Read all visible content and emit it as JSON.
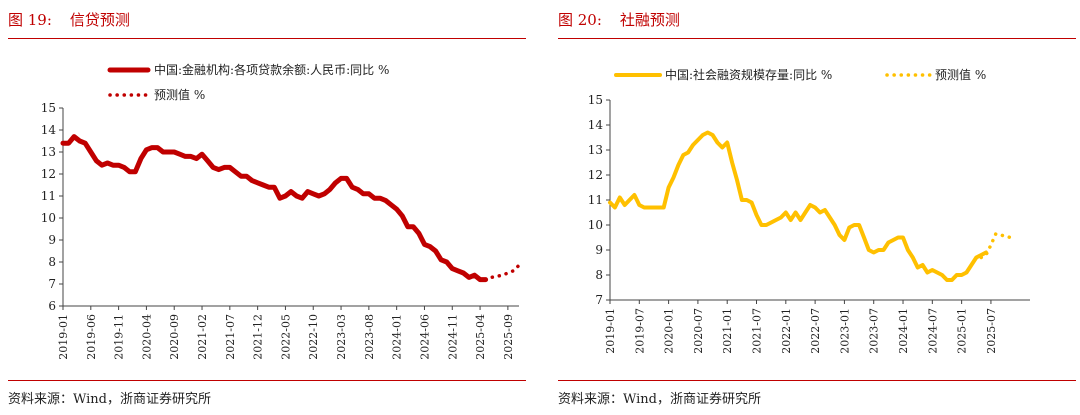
{
  "charts": [
    {
      "figure_number": "图 19:",
      "figure_title": "信贷预测",
      "source": "资料来源：Wind，浙商证券研究所"
    },
    {
      "figure_number": "图 20:",
      "figure_title": "社融预测",
      "source": "资料来源：Wind，浙商证券研究所"
    }
  ],
  "chart_data": [
    {
      "type": "line",
      "title": "图 19:  信贷预测",
      "colors": {
        "actual": "#c00000",
        "forecast": "#c00000"
      },
      "legend_position": "top-right",
      "grid": false,
      "ylim": [
        6,
        15
      ],
      "yticks": [
        6,
        7,
        8,
        9,
        10,
        11,
        12,
        13,
        14,
        15
      ],
      "xticks": [
        "2019-01",
        "2019-06",
        "2019-11",
        "2020-04",
        "2020-09",
        "2021-02",
        "2021-07",
        "2021-12",
        "2022-05",
        "2022-10",
        "2023-03",
        "2023-08",
        "2024-01",
        "2024-06",
        "2024-11",
        "2025-04",
        "2025-09"
      ],
      "series": [
        {
          "name": "中国:金融机构:各项贷款余额:人民币:同比 %",
          "style": "solid",
          "x": [
            "2019-01",
            "2019-02",
            "2019-03",
            "2019-04",
            "2019-05",
            "2019-06",
            "2019-07",
            "2019-08",
            "2019-09",
            "2019-10",
            "2019-11",
            "2019-12",
            "2020-01",
            "2020-02",
            "2020-03",
            "2020-04",
            "2020-05",
            "2020-06",
            "2020-07",
            "2020-08",
            "2020-09",
            "2020-10",
            "2020-11",
            "2020-12",
            "2021-01",
            "2021-02",
            "2021-03",
            "2021-04",
            "2021-05",
            "2021-06",
            "2021-07",
            "2021-08",
            "2021-09",
            "2021-10",
            "2021-11",
            "2021-12",
            "2022-01",
            "2022-02",
            "2022-03",
            "2022-04",
            "2022-05",
            "2022-06",
            "2022-07",
            "2022-08",
            "2022-09",
            "2022-10",
            "2022-11",
            "2022-12",
            "2023-01",
            "2023-02",
            "2023-03",
            "2023-04",
            "2023-05",
            "2023-06",
            "2023-07",
            "2023-08",
            "2023-09",
            "2023-10",
            "2023-11",
            "2023-12",
            "2024-01",
            "2024-02",
            "2024-03",
            "2024-04",
            "2024-05",
            "2024-06",
            "2024-07",
            "2024-08",
            "2024-09",
            "2024-10",
            "2024-11",
            "2024-12",
            "2025-01",
            "2025-02",
            "2025-03",
            "2025-04",
            "2025-05"
          ],
          "values": [
            13.4,
            13.4,
            13.7,
            13.5,
            13.4,
            13.0,
            12.6,
            12.4,
            12.5,
            12.4,
            12.4,
            12.3,
            12.1,
            12.1,
            12.7,
            13.1,
            13.2,
            13.2,
            13.0,
            13.0,
            13.0,
            12.9,
            12.8,
            12.8,
            12.7,
            12.9,
            12.6,
            12.3,
            12.2,
            12.3,
            12.3,
            12.1,
            11.9,
            11.9,
            11.7,
            11.6,
            11.5,
            11.4,
            11.4,
            10.9,
            11.0,
            11.2,
            11.0,
            10.9,
            11.2,
            11.1,
            11.0,
            11.1,
            11.3,
            11.6,
            11.8,
            11.8,
            11.4,
            11.3,
            11.1,
            11.1,
            10.9,
            10.9,
            10.8,
            10.6,
            10.4,
            10.1,
            9.6,
            9.6,
            9.3,
            8.8,
            8.7,
            8.5,
            8.1,
            8.0,
            7.7,
            7.6,
            7.5,
            7.3,
            7.4,
            7.2,
            7.2
          ]
        },
        {
          "name": "预测值 %",
          "style": "dotted",
          "x": [
            "2025-05",
            "2025-06",
            "2025-07",
            "2025-08",
            "2025-09",
            "2025-10",
            "2025-11"
          ],
          "values": [
            7.2,
            7.3,
            7.35,
            7.4,
            7.5,
            7.6,
            7.85
          ]
        }
      ]
    },
    {
      "type": "line",
      "title": "图 20:  社融预测",
      "colors": {
        "actual": "#ffc000",
        "forecast": "#ffc000"
      },
      "legend_position": "top",
      "grid": false,
      "ylim": [
        7,
        15
      ],
      "yticks": [
        7,
        8,
        9,
        10,
        11,
        12,
        13,
        14,
        15
      ],
      "xticks": [
        "2019-01",
        "2019-07",
        "2020-01",
        "2020-07",
        "2021-01",
        "2021-07",
        "2022-01",
        "2022-07",
        "2023-01",
        "2023-07",
        "2024-01",
        "2024-07",
        "2025-01",
        "2025-07"
      ],
      "series": [
        {
          "name": "中国:社会融资规模存量:同比 %",
          "style": "solid",
          "x": [
            "2019-01",
            "2019-02",
            "2019-03",
            "2019-04",
            "2019-05",
            "2019-06",
            "2019-07",
            "2019-08",
            "2019-09",
            "2019-10",
            "2019-11",
            "2019-12",
            "2020-01",
            "2020-02",
            "2020-03",
            "2020-04",
            "2020-05",
            "2020-06",
            "2020-07",
            "2020-08",
            "2020-09",
            "2020-10",
            "2020-11",
            "2020-12",
            "2021-01",
            "2021-02",
            "2021-03",
            "2021-04",
            "2021-05",
            "2021-06",
            "2021-07",
            "2021-08",
            "2021-09",
            "2021-10",
            "2021-11",
            "2021-12",
            "2022-01",
            "2022-02",
            "2022-03",
            "2022-04",
            "2022-05",
            "2022-06",
            "2022-07",
            "2022-08",
            "2022-09",
            "2022-10",
            "2022-11",
            "2022-12",
            "2023-01",
            "2023-02",
            "2023-03",
            "2023-04",
            "2023-05",
            "2023-06",
            "2023-07",
            "2023-08",
            "2023-09",
            "2023-10",
            "2023-11",
            "2023-12",
            "2024-01",
            "2024-02",
            "2024-03",
            "2024-04",
            "2024-05",
            "2024-06",
            "2024-07",
            "2024-08",
            "2024-09",
            "2024-10",
            "2024-11",
            "2024-12",
            "2025-01",
            "2025-02",
            "2025-03",
            "2025-04",
            "2025-05",
            "2025-06"
          ],
          "values": [
            10.9,
            10.7,
            11.1,
            10.8,
            11.0,
            11.2,
            10.8,
            10.7,
            10.7,
            10.7,
            10.7,
            10.7,
            11.5,
            11.9,
            12.4,
            12.8,
            12.9,
            13.2,
            13.4,
            13.6,
            13.7,
            13.6,
            13.3,
            13.1,
            13.3,
            12.5,
            11.8,
            11.0,
            11.0,
            10.9,
            10.4,
            10.0,
            10.0,
            10.1,
            10.2,
            10.3,
            10.5,
            10.2,
            10.5,
            10.2,
            10.5,
            10.8,
            10.7,
            10.5,
            10.6,
            10.3,
            10.0,
            9.6,
            9.4,
            9.9,
            10.0,
            10.0,
            9.5,
            9.0,
            8.9,
            9.0,
            9.0,
            9.3,
            9.4,
            9.5,
            9.5,
            9.0,
            8.7,
            8.3,
            8.4,
            8.1,
            8.2,
            8.1,
            8.0,
            7.8,
            7.8,
            8.0,
            8.0,
            8.1,
            8.4,
            8.7,
            8.8,
            8.9
          ]
        },
        {
          "name": "预测值 %",
          "style": "dotted",
          "x": [
            "2025-05",
            "2025-06",
            "2025-07",
            "2025-08",
            "2025-09",
            "2025-10",
            "2025-11",
            "2025-12"
          ],
          "values": [
            8.7,
            8.8,
            9.2,
            9.65,
            9.6,
            9.55,
            9.5,
            9.45
          ]
        }
      ]
    }
  ]
}
